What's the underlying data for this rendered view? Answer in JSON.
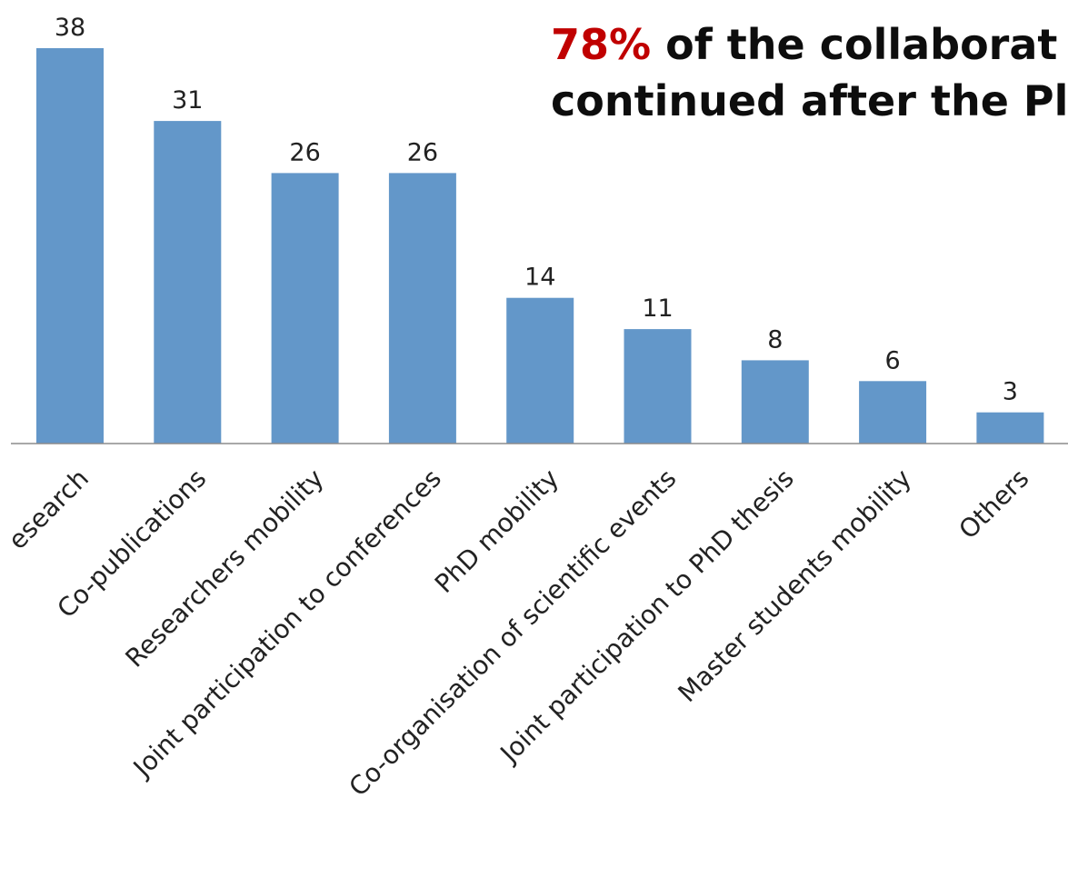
{
  "headline": {
    "highlight": "78%",
    "line1_rest": " of the collaborat",
    "line2": "continued after the Pl"
  },
  "colors": {
    "bar": "#6397c9",
    "highlight": "#c00000",
    "axis": "#8c8c8c"
  },
  "chart_data": {
    "type": "bar",
    "categories": [
      "esearch",
      "Co-publications",
      "Researchers mobility",
      "Joint participation to conferences",
      "PhD mobility",
      "Co-organisation of scientific events",
      "Joint participation to PhD thesis",
      "Master students mobility",
      "Others"
    ],
    "values": [
      38,
      31,
      26,
      26,
      14,
      11,
      8,
      6,
      3
    ],
    "ylim": [
      0,
      38
    ],
    "grid": false,
    "legend": "none"
  }
}
